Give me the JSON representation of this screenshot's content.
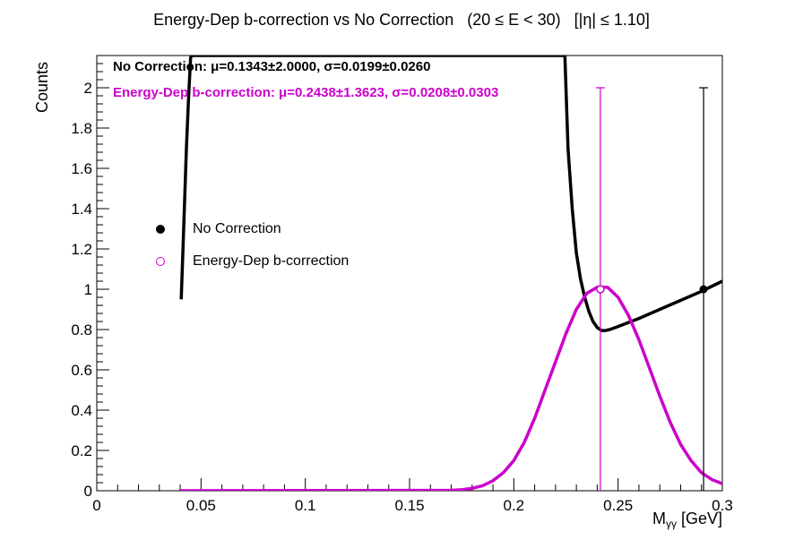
{
  "colors": {
    "no_correction": "#000000",
    "energy_dep": "#cc00cc"
  },
  "chart_data": {
    "type": "line",
    "title": "Energy-Dep b-correction vs No Correction   (20 ≤ E < 30)   [|η| ≤ 1.10]",
    "xlabel_main": "M",
    "xlabel_sub": "γγ",
    "xlabel_unit": " [GeV]",
    "ylabel": "Counts",
    "xlim": [
      0,
      0.3
    ],
    "ylim": [
      0,
      2.16
    ],
    "x_ticks": [
      0,
      0.05,
      0.1,
      0.15,
      0.2,
      0.25,
      0.3
    ],
    "x_tick_labels": [
      "0",
      "0.05",
      "0.1",
      "0.15",
      "0.2",
      "0.25",
      "0.3"
    ],
    "y_ticks": [
      0,
      0.2,
      0.4,
      0.6,
      0.8,
      1,
      1.2,
      1.4,
      1.6,
      1.8,
      2
    ],
    "y_tick_labels": [
      "0",
      "0.2",
      "0.4",
      "0.6",
      "0.8",
      "1",
      "1.2",
      "1.4",
      "1.6",
      "1.8",
      "2"
    ],
    "stats": {
      "no_correction": "No Correction:  μ=0.1343±2.0000,  σ=0.0199±0.0260",
      "energy_dep": "Energy-Dep b-correction:  μ=0.2438±1.3623,  σ=0.0208±0.0303"
    },
    "legend": [
      {
        "name": "No Correction",
        "marker": "filled-circle",
        "color": "#000000"
      },
      {
        "name": "Energy-Dep b-correction",
        "marker": "open-circle",
        "color": "#cc00cc"
      }
    ],
    "data_points": [
      {
        "series": "No Correction",
        "x": 0.291,
        "y": 1,
        "err_low": 1,
        "err_high": 1
      },
      {
        "series": "Energy-Dep b-correction",
        "x": 0.2415,
        "y": 1,
        "err_low": 1,
        "err_high": 1
      }
    ],
    "fit_curves": [
      {
        "series": "No Correction",
        "x": [
          0.0405,
          0.041,
          0.042,
          0.043,
          0.044,
          0.045,
          0.0455,
          0.2245,
          0.226,
          0.228,
          0.23,
          0.232,
          0.234,
          0.236,
          0.238,
          0.24,
          0.242,
          0.244,
          0.246,
          0.25,
          0.255,
          0.26,
          0.27,
          0.28,
          0.29,
          0.3
        ],
        "y": [
          0.95,
          1.1,
          1.4,
          1.7,
          1.95,
          2.15,
          2.16,
          2.16,
          1.7,
          1.4,
          1.18,
          1.05,
          0.96,
          0.89,
          0.84,
          0.81,
          0.795,
          0.795,
          0.8,
          0.815,
          0.835,
          0.855,
          0.9,
          0.945,
          0.99,
          1.04
        ]
      },
      {
        "series": "Energy-Dep b-correction",
        "x": [
          0.04,
          0.17,
          0.175,
          0.18,
          0.185,
          0.19,
          0.195,
          0.2,
          0.205,
          0.21,
          0.215,
          0.22,
          0.225,
          0.23,
          0.235,
          0.24,
          0.245,
          0.25,
          0.255,
          0.26,
          0.265,
          0.27,
          0.275,
          0.28,
          0.285,
          0.29,
          0.295,
          0.3
        ],
        "y": [
          0,
          0.002,
          0.005,
          0.012,
          0.025,
          0.05,
          0.09,
          0.15,
          0.24,
          0.36,
          0.5,
          0.64,
          0.78,
          0.9,
          0.98,
          1.01,
          1.01,
          0.96,
          0.87,
          0.75,
          0.61,
          0.47,
          0.34,
          0.23,
          0.15,
          0.09,
          0.055,
          0.035
        ]
      }
    ]
  }
}
